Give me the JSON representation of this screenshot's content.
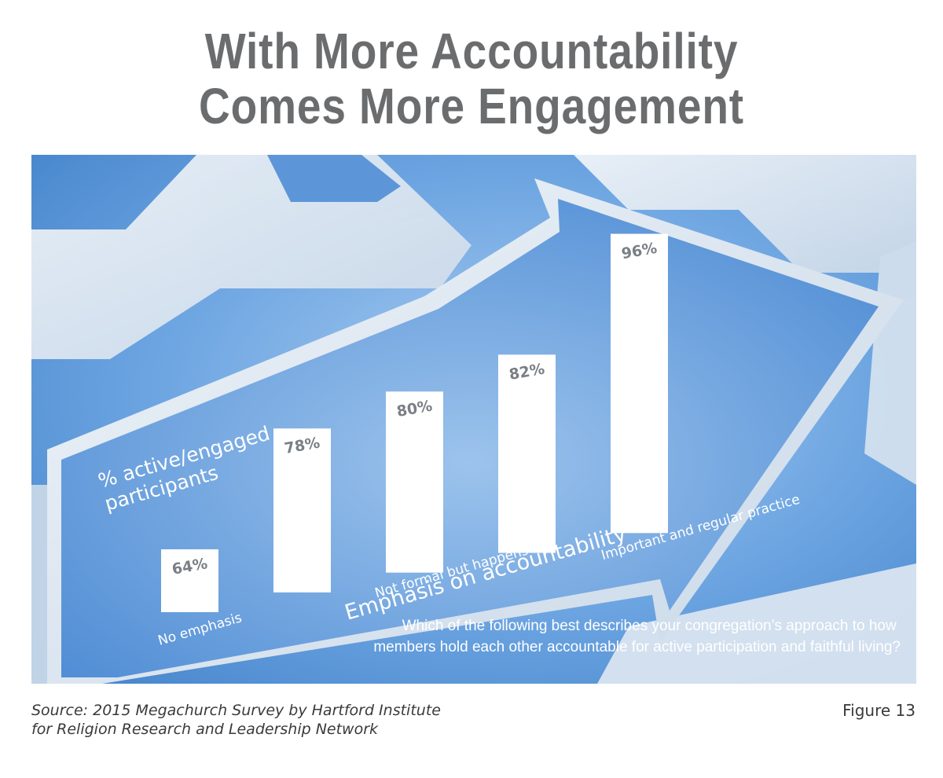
{
  "title_lines": [
    "With More Accountability",
    "Comes More Engagement"
  ],
  "source_lines": [
    "Source: 2015 Megachurch Survey by Hartford Institute",
    "for Religion Research and Leadership Network"
  ],
  "figure_label": "Figure 13",
  "question_lines": [
    "Which of the following best describes your congregation’s approach to how",
    "members hold each other accountable for active participation and faithful living?"
  ],
  "colors": {
    "panel_blue": "#4f8fd6",
    "arrow_light": "#dfe8f2",
    "bar": "#ffffff",
    "value_label": "#7a7f86",
    "title_gray": "#6b6c6e"
  },
  "chart_data": {
    "type": "bar",
    "ylabel": "% active/engaged participants",
    "ylabel_lines": [
      "% active/engaged",
      "participants"
    ],
    "xlabel": "Emphasis on accountability",
    "categories": [
      "No emphasis",
      "",
      "Not formal but happens",
      "",
      "Important and regular practice"
    ],
    "values": [
      64,
      78,
      80,
      82,
      96
    ],
    "value_labels": [
      "64%",
      "78%",
      "80%",
      "82%",
      "96%"
    ],
    "grid": false,
    "legend": "none"
  }
}
